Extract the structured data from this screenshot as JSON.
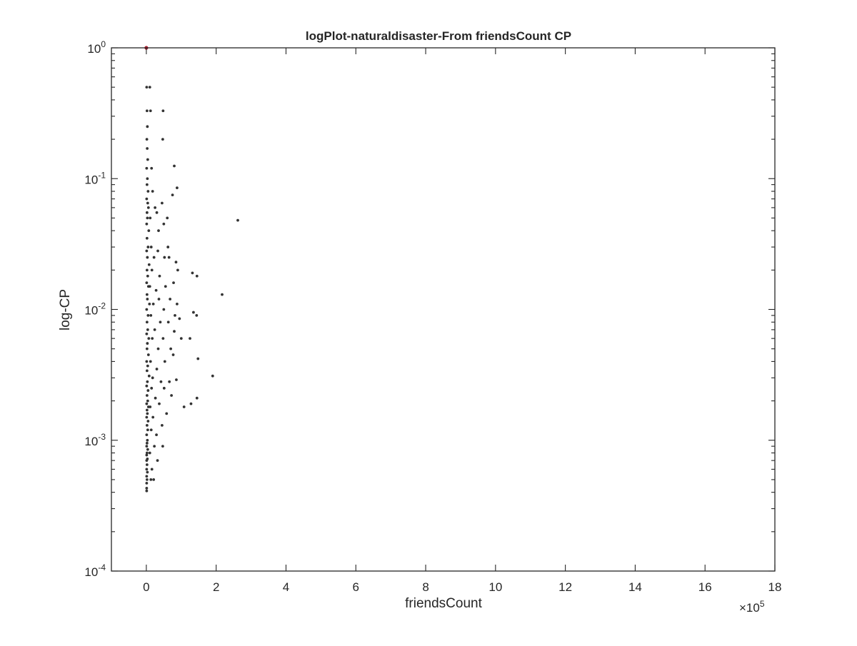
{
  "chart_data": {
    "type": "scatter",
    "title": "logPlot-naturaldisaster-From friendsCount CP",
    "xlabel": "friendsCount",
    "ylabel": "log-CP",
    "x_multiplier_label": "×10",
    "x_multiplier_exponent": "5",
    "xlim": [
      -100000,
      1800000
    ],
    "ylim": [
      0.0001,
      1
    ],
    "yscale": "log",
    "grid": false,
    "box": true,
    "x_ticks": [
      0,
      200000,
      400000,
      600000,
      800000,
      1000000,
      1200000,
      1400000,
      1600000,
      1800000
    ],
    "x_tick_labels": [
      "0",
      "2",
      "4",
      "6",
      "8",
      "10",
      "12",
      "14",
      "16",
      "18"
    ],
    "y_ticks": [
      {
        "value": 1,
        "base": "10",
        "exp": "0"
      },
      {
        "value": 0.1,
        "base": "10",
        "exp": "-1"
      },
      {
        "value": 0.01,
        "base": "10",
        "exp": "-2"
      },
      {
        "value": 0.001,
        "base": "10",
        "exp": "-3"
      },
      {
        "value": 0.0001,
        "base": "10",
        "exp": "-4"
      }
    ],
    "series": [
      {
        "color": "#333333",
        "marker": "point",
        "points": [
          [
            0,
            1.0
          ],
          [
            1000,
            0.5
          ],
          [
            2000,
            0.33
          ],
          [
            3000,
            0.25
          ],
          [
            1500,
            0.2
          ],
          [
            2500,
            0.17
          ],
          [
            4000,
            0.14
          ],
          [
            1000,
            0.12
          ],
          [
            3000,
            0.1
          ],
          [
            2000,
            0.09
          ],
          [
            5000,
            0.08
          ],
          [
            1000,
            0.07
          ],
          [
            4000,
            0.065
          ],
          [
            6000,
            0.06
          ],
          [
            2000,
            0.055
          ],
          [
            3000,
            0.05
          ],
          [
            1000,
            0.045
          ],
          [
            7000,
            0.04
          ],
          [
            2000,
            0.035
          ],
          [
            5000,
            0.03
          ],
          [
            1000,
            0.028
          ],
          [
            3000,
            0.025
          ],
          [
            8000,
            0.022
          ],
          [
            2000,
            0.02
          ],
          [
            4000,
            0.018
          ],
          [
            1000,
            0.016
          ],
          [
            6000,
            0.015
          ],
          [
            2000,
            0.013
          ],
          [
            3000,
            0.012
          ],
          [
            9000,
            0.011
          ],
          [
            1000,
            0.01
          ],
          [
            5000,
            0.009
          ],
          [
            2000,
            0.008
          ],
          [
            4000,
            0.007
          ],
          [
            1000,
            0.0065
          ],
          [
            7000,
            0.006
          ],
          [
            3000,
            0.0055
          ],
          [
            2000,
            0.005
          ],
          [
            6000,
            0.0045
          ],
          [
            1000,
            0.004
          ],
          [
            4000,
            0.0037
          ],
          [
            2000,
            0.0034
          ],
          [
            8000,
            0.0031
          ],
          [
            3000,
            0.0028
          ],
          [
            1000,
            0.0026
          ],
          [
            5000,
            0.0024
          ],
          [
            2000,
            0.0022
          ],
          [
            4000,
            0.002
          ],
          [
            1000,
            0.0019
          ],
          [
            6000,
            0.0018
          ],
          [
            2000,
            0.0017
          ],
          [
            3000,
            0.0016
          ],
          [
            1000,
            0.0015
          ],
          [
            5000,
            0.0014
          ],
          [
            2000,
            0.0013
          ],
          [
            4000,
            0.0012
          ],
          [
            1000,
            0.0011
          ],
          [
            3000,
            0.001
          ],
          [
            2000,
            0.00095
          ],
          [
            1000,
            0.0009
          ],
          [
            4000,
            0.00085
          ],
          [
            2000,
            0.0008
          ],
          [
            1000,
            0.00077
          ],
          [
            3000,
            0.00072
          ],
          [
            1000,
            0.0007
          ],
          [
            2000,
            0.00065
          ],
          [
            1000,
            0.0006
          ],
          [
            3000,
            0.00057
          ],
          [
            1000,
            0.00053
          ],
          [
            2000,
            0.0005
          ],
          [
            1000,
            0.00047
          ],
          [
            1000,
            0.00043
          ],
          [
            1000,
            0.00041
          ],
          [
            10000,
            0.5
          ],
          [
            12000,
            0.33
          ],
          [
            15000,
            0.12
          ],
          [
            18000,
            0.08
          ],
          [
            11000,
            0.05
          ],
          [
            14000,
            0.03
          ],
          [
            16000,
            0.02
          ],
          [
            10000,
            0.015
          ],
          [
            13000,
            0.009
          ],
          [
            17000,
            0.006
          ],
          [
            12000,
            0.004
          ],
          [
            15000,
            0.0025
          ],
          [
            11000,
            0.0018
          ],
          [
            14000,
            0.0012
          ],
          [
            10000,
            0.0008
          ],
          [
            16000,
            0.0006
          ],
          [
            13000,
            0.0005
          ],
          [
            20000,
            0.011
          ],
          [
            18000,
            0.003
          ],
          [
            19000,
            0.0015
          ],
          [
            25000,
            0.06
          ],
          [
            22000,
            0.025
          ],
          [
            28000,
            0.014
          ],
          [
            24000,
            0.007
          ],
          [
            30000,
            0.0035
          ],
          [
            26000,
            0.0021
          ],
          [
            29000,
            0.0011
          ],
          [
            23000,
            0.0009
          ],
          [
            32000,
            0.0007
          ],
          [
            21000,
            0.0005
          ],
          [
            30000,
            0.055
          ],
          [
            35000,
            0.04
          ],
          [
            33000,
            0.028
          ],
          [
            38000,
            0.018
          ],
          [
            36000,
            0.012
          ],
          [
            40000,
            0.008
          ],
          [
            34000,
            0.005
          ],
          [
            42000,
            0.0028
          ],
          [
            37000,
            0.0019
          ],
          [
            45000,
            0.0013
          ],
          [
            48000,
            0.33
          ],
          [
            47000,
            0.2
          ],
          [
            45000,
            0.065
          ],
          [
            50000,
            0.045
          ],
          [
            52000,
            0.025
          ],
          [
            55000,
            0.015
          ],
          [
            50000,
            0.01
          ],
          [
            48000,
            0.006
          ],
          [
            53000,
            0.004
          ],
          [
            51000,
            0.0025
          ],
          [
            58000,
            0.0016
          ],
          [
            47000,
            0.0009
          ],
          [
            60000,
            0.05
          ],
          [
            62000,
            0.03
          ],
          [
            65000,
            0.025
          ],
          [
            68000,
            0.012
          ],
          [
            63000,
            0.008
          ],
          [
            70000,
            0.005
          ],
          [
            66000,
            0.0028
          ],
          [
            72000,
            0.0022
          ],
          [
            80000,
            0.125
          ],
          [
            75000,
            0.075
          ],
          [
            78000,
            0.016
          ],
          [
            82000,
            0.009
          ],
          [
            77000,
            0.0045
          ],
          [
            80000,
            0.0068
          ],
          [
            85000,
            0.023
          ],
          [
            88000,
            0.011
          ],
          [
            86000,
            0.0029
          ],
          [
            88000,
            0.085
          ],
          [
            95000,
            0.0085
          ],
          [
            100000,
            0.006
          ],
          [
            90000,
            0.02
          ],
          [
            108000,
            0.0018
          ],
          [
            125000,
            0.006
          ],
          [
            128000,
            0.0019
          ],
          [
            132000,
            0.019
          ],
          [
            135000,
            0.0095
          ],
          [
            144000,
            0.009
          ],
          [
            145000,
            0.018
          ],
          [
            145000,
            0.0021
          ],
          [
            148000,
            0.0042
          ],
          [
            190000,
            0.0031
          ],
          [
            217000,
            0.013
          ],
          [
            262000,
            0.048
          ]
        ]
      },
      {
        "color": "#b2182b",
        "marker": "point",
        "points": [
          [
            0,
            1.0
          ]
        ]
      }
    ]
  }
}
